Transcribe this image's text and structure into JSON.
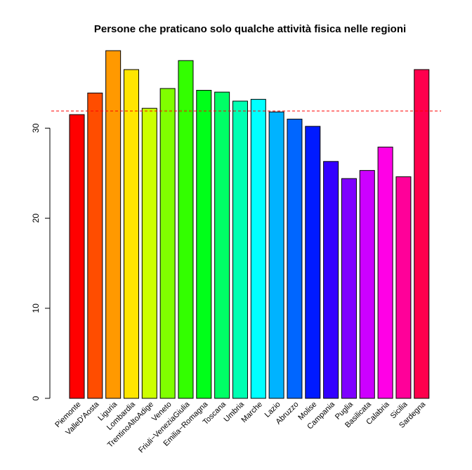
{
  "chart_data": {
    "type": "bar",
    "title": "Persone che praticano solo qualche attività fisica nelle regioni",
    "xlabel": "",
    "ylabel": "",
    "ylim": [
      0,
      39
    ],
    "yticks": [
      0,
      10,
      20,
      30
    ],
    "grid": false,
    "legend": "none",
    "reference_line": {
      "value": 31.9,
      "color": "#ff0000",
      "style": "dashed"
    },
    "categories": [
      "Piemonte",
      "ValleD'Aosta",
      "Liguria",
      "Lombardia",
      "TrentinoAltoAdige",
      "Veneto",
      "Friuli−VeneziaGiulia",
      "Emilia−Romagna",
      "Toscana",
      "Umbria",
      "Marche",
      "Lazio",
      "Abruzzo",
      "Molise",
      "Campania",
      "Puglia",
      "Basilicata",
      "Calabria",
      "Sicilia",
      "Sardegna"
    ],
    "values": [
      31.5,
      33.9,
      38.6,
      36.5,
      32.2,
      34.4,
      37.5,
      34.2,
      34.0,
      33.0,
      33.2,
      31.8,
      31.0,
      30.2,
      26.3,
      24.4,
      25.3,
      27.9,
      24.6,
      36.5
    ],
    "colors": [
      "#FF0000",
      "#FF4D00",
      "#FF9900",
      "#FFE500",
      "#CCFF00",
      "#80FF00",
      "#33FF00",
      "#00FF19",
      "#00FF66",
      "#00FFB2",
      "#00FFFF",
      "#00B3FF",
      "#0066FF",
      "#001AFF",
      "#3300FF",
      "#7F00FF",
      "#CC00FF",
      "#FF00E6",
      "#FF0099",
      "#FF004D"
    ]
  }
}
